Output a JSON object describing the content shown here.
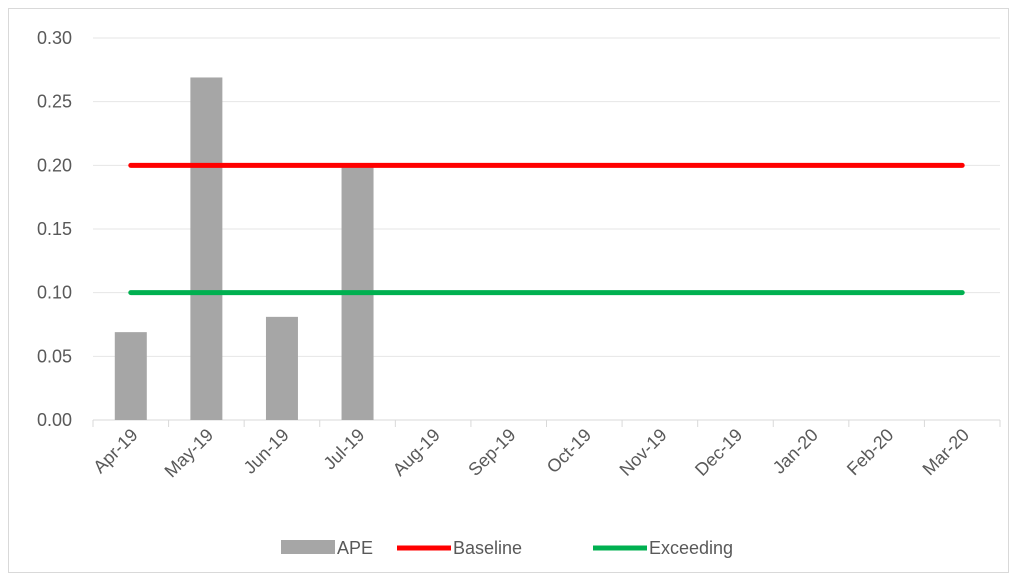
{
  "chart_data": {
    "type": "bar",
    "categories": [
      "Apr-19",
      "May-19",
      "Jun-19",
      "Jul-19",
      "Aug-19",
      "Sep-19",
      "Oct-19",
      "Nov-19",
      "Dec-19",
      "Jan-20",
      "Feb-20",
      "Mar-20"
    ],
    "series": [
      {
        "name": "APE",
        "type": "bar",
        "color": "#a6a6a6",
        "values": [
          0.069,
          0.269,
          0.081,
          0.199,
          null,
          null,
          null,
          null,
          null,
          null,
          null,
          null
        ]
      },
      {
        "name": "Baseline",
        "type": "line",
        "color": "#ff0000",
        "values": [
          0.2,
          0.2,
          0.2,
          0.2,
          0.2,
          0.2,
          0.2,
          0.2,
          0.2,
          0.2,
          0.2,
          0.2
        ]
      },
      {
        "name": "Exceeding",
        "type": "line",
        "color": "#00b050",
        "values": [
          0.1,
          0.1,
          0.1,
          0.1,
          0.1,
          0.1,
          0.1,
          0.1,
          0.1,
          0.1,
          0.1,
          0.1
        ]
      }
    ],
    "ylim": [
      0,
      0.3
    ],
    "yticks": [
      "0.00",
      "0.05",
      "0.10",
      "0.15",
      "0.20",
      "0.25",
      "0.30"
    ],
    "grid": true,
    "legend": "bottom"
  }
}
